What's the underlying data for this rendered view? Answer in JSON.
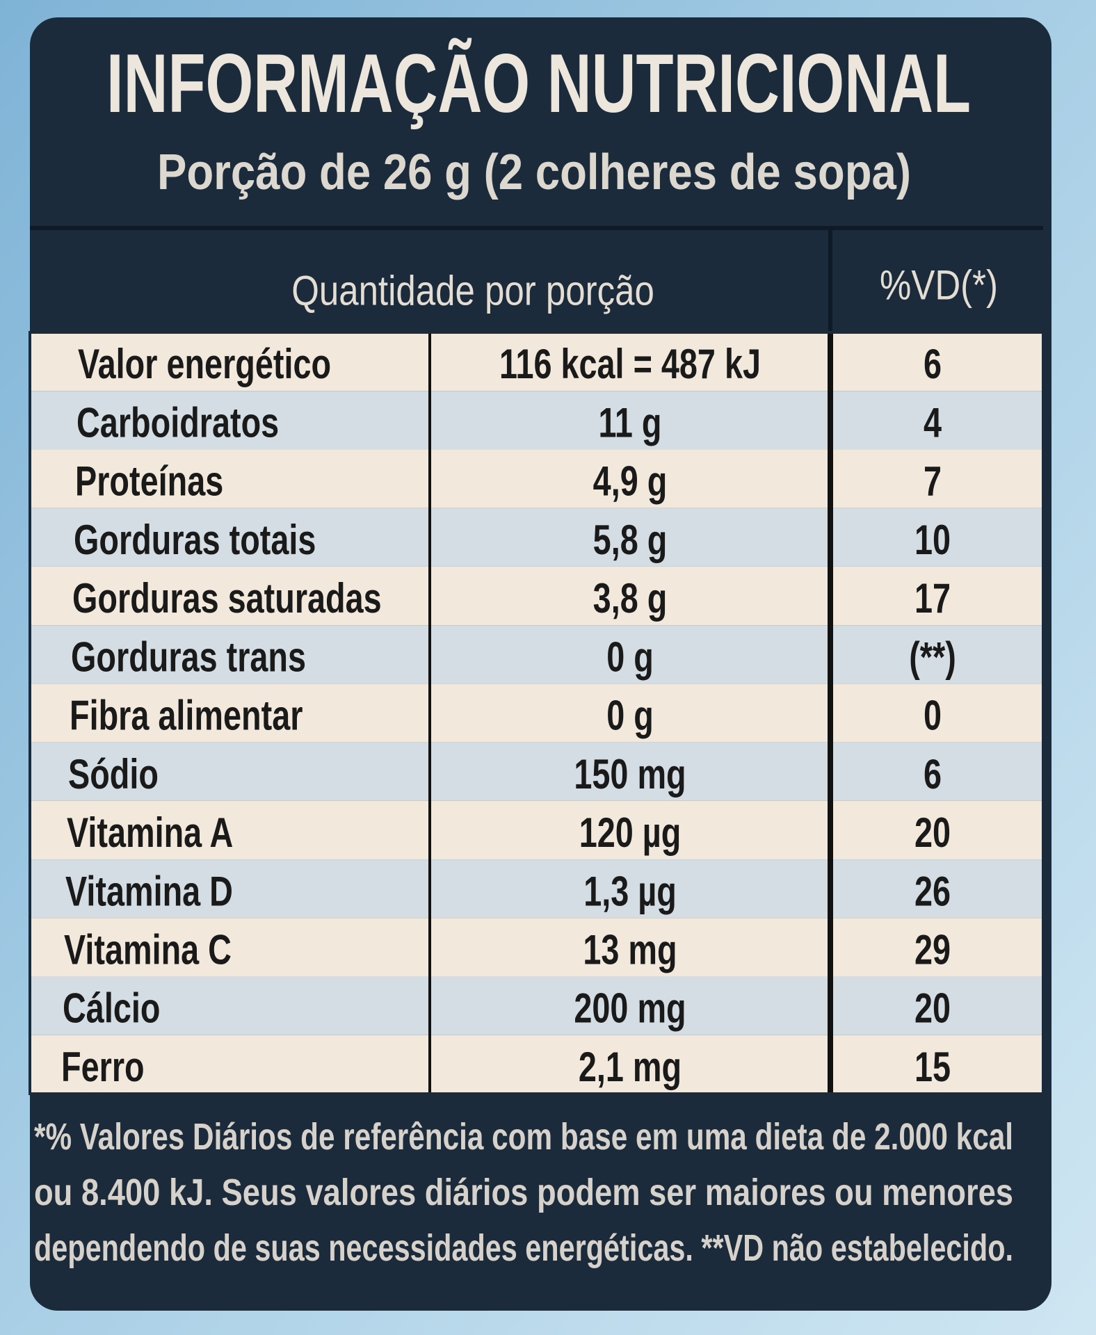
{
  "title": "INFORMAÇÃO NUTRICIONAL",
  "subtitle": "Porção de 26 g (2 colheres de sopa)",
  "table": {
    "header": [
      "Quantidade por porção",
      "%VD(*)"
    ],
    "rows": [
      [
        "Valor energético",
        "116 kcal = 487 kJ",
        "6"
      ],
      [
        "Carboidratos",
        "11 g",
        "4"
      ],
      [
        "Proteínas",
        "4,9 g",
        "7"
      ],
      [
        "Gorduras totais",
        "5,8 g",
        "10"
      ],
      [
        "Gorduras saturadas",
        "3,8 g",
        "17"
      ],
      [
        "Gorduras trans",
        "0 g",
        "(**)"
      ],
      [
        "Fibra alimentar",
        "0 g",
        "0"
      ],
      [
        "Sódio",
        "150 mg",
        "6"
      ],
      [
        "Vitamina A",
        "120 µg",
        "20"
      ],
      [
        "Vitamina D",
        "1,3 µg",
        "26"
      ],
      [
        "Vitamina C",
        "13 mg",
        "29"
      ],
      [
        "Cálcio",
        "200 mg",
        "20"
      ],
      [
        "Ferro",
        "2,1 mg",
        "15"
      ]
    ]
  },
  "footnote": [
    "*% Valores Diários de referência com base em uma dieta de 2.000 kcal",
    "ou 8.400 kJ. Seus valores diários podem ser maiores ou menores",
    "dependendo de suas necessidades energéticas. **VD não estabelecido."
  ]
}
